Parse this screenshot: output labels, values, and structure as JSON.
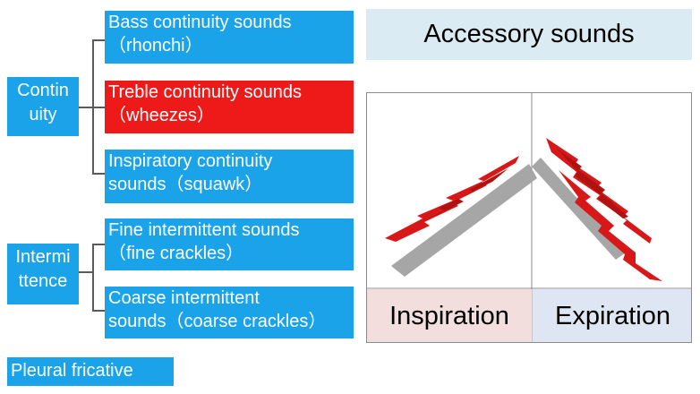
{
  "categories": {
    "continuity": "Contin\nuity",
    "intermittence": "Intermi\nttence",
    "pleural": "Pleural fricative"
  },
  "sounds": [
    {
      "line1": "Bass continuity sounds",
      "line2": "（rhonchi）",
      "color": "#1aa3e8"
    },
    {
      "line1": "Treble continuity sounds",
      "line2": "（wheezes）",
      "color": "#ee1a1a"
    },
    {
      "line1": "Inspiratory continuity",
      "line2": "sounds（squawk）",
      "color": "#1aa3e8"
    },
    {
      "line1": "Fine intermittent sounds",
      "line2": "（fine crackles）",
      "color": "#1aa3e8"
    },
    {
      "line1": "Coarse intermittent",
      "line2": "sounds（coarse crackles）",
      "color": "#1aa3e8"
    }
  ],
  "accessory": {
    "title": "Accessory sounds",
    "inspiration": "Inspiration",
    "expiration": "Expiration"
  },
  "colors": {
    "blue": "#1aa3e8",
    "red": "#ee1a1a",
    "title_bg": "#daebf3",
    "inspiration_bg": "#f3dede",
    "expiration_bg": "#dde6f2",
    "bar": "#a6a6a6",
    "spike": "#d81818"
  }
}
